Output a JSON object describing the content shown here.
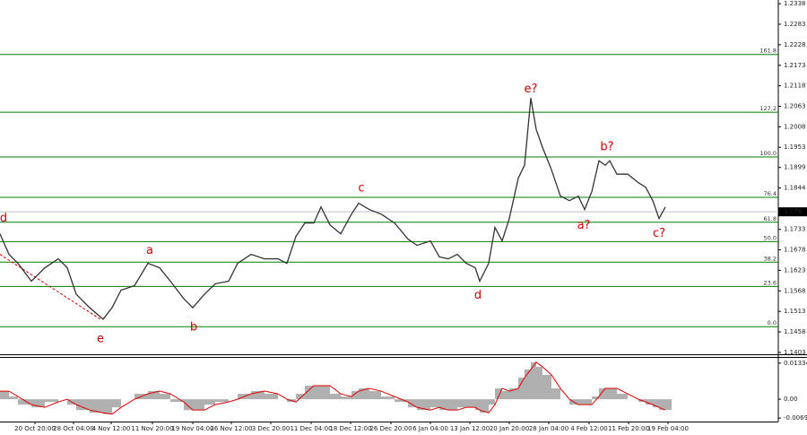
{
  "chart_data": [
    {
      "type": "line",
      "x": [
        0,
        10,
        20,
        35,
        50,
        65,
        75,
        85,
        100,
        115,
        125,
        135,
        150,
        165,
        178,
        190,
        205,
        215,
        228,
        240,
        255,
        265,
        280,
        295,
        310,
        320,
        330,
        340,
        350,
        358,
        368,
        380,
        392,
        400,
        412,
        425,
        440,
        455,
        465,
        480,
        490,
        500,
        510,
        520,
        530,
        535,
        545,
        552,
        560,
        568,
        578,
        585,
        592,
        598,
        605,
        615,
        625,
        635,
        645,
        652,
        660,
        668,
        675,
        680,
        688,
        700,
        712,
        720,
        728,
        735,
        742
      ],
      "series": [
        {
          "color": "#333333",
          "values": [
            1.1721,
            1.1666,
            1.1642,
            1.1594,
            1.163,
            1.1654,
            1.163,
            1.1559,
            1.1523,
            1.1492,
            1.1523,
            1.157,
            1.1582,
            1.1642,
            1.163,
            1.1594,
            1.1547,
            1.1523,
            1.1559,
            1.1587,
            1.1594,
            1.1642,
            1.1666,
            1.1654,
            1.1654,
            1.1642,
            1.1714,
            1.175,
            1.175,
            1.1793,
            1.1745,
            1.1721,
            1.1774,
            1.1803,
            1.1786,
            1.1774,
            1.175,
            1.1707,
            1.169,
            1.1702,
            1.1659,
            1.1654,
            1.1666,
            1.1642,
            1.163,
            1.1594,
            1.1642,
            1.1738,
            1.1702,
            1.1762,
            1.187,
            1.1905,
            1.2085,
            1.2001,
            1.1953,
            1.1893,
            1.1822,
            1.181,
            1.1822,
            1.1786,
            1.1834,
            1.1917,
            1.1905,
            1.1917,
            1.1881,
            1.1881,
            1.1858,
            1.1846,
            1.181,
            1.1762,
            1.1793
          ]
        }
      ],
      "xlim": [
        0,
        868
      ],
      "xticks": [
        {
          "value": 39,
          "label": "20 Oct 20:00"
        },
        {
          "value": 82,
          "label": "28 Oct 04:00"
        },
        {
          "value": 124,
          "label": "4 Nov 12:00"
        },
        {
          "value": 170,
          "label": "11 Nov 20:00"
        },
        {
          "value": 215,
          "label": "19 Nov 04:00"
        },
        {
          "value": 258,
          "label": "26 Nov 12:00"
        },
        {
          "value": 302,
          "label": "3 Dec 20:00"
        },
        {
          "value": 347,
          "label": "11 Dec 04:00"
        },
        {
          "value": 391,
          "label": "18 Dec 12:00"
        },
        {
          "value": 436,
          "label": "26 Dec 20:00"
        },
        {
          "value": 480,
          "label": "6 Jan 04:00"
        },
        {
          "value": 524,
          "label": "13 Jan 12:00"
        },
        {
          "value": 568,
          "label": "20 Jan 20:00"
        },
        {
          "value": 612,
          "label": "28 Jan 04:00"
        },
        {
          "value": 657,
          "label": "4 Feb 12:00"
        },
        {
          "value": 701,
          "label": "11 Feb 20:00"
        },
        {
          "value": 745,
          "label": "19 Feb 04:00"
        }
      ],
      "ylim": [
        1.1398,
        1.2348
      ],
      "yticks": [
        1.2338,
        1.2283,
        1.2228,
        1.2173,
        1.2118,
        1.2063,
        1.2008,
        1.1953,
        1.1899,
        1.1844,
        1.1733,
        1.1678,
        1.1623,
        1.1568,
        1.1513,
        1.1458,
        1.1403
      ],
      "current_price": 1.178,
      "fib_color": "#008000",
      "fib_levels": [
        {
          "value": 1.2202,
          "label": "161.8"
        },
        {
          "value": 1.2047,
          "label": "127.2"
        },
        {
          "value": 1.1927,
          "label": "100.0"
        },
        {
          "value": 1.1819,
          "label": "76.4"
        },
        {
          "value": 1.1752,
          "label": "61.8"
        },
        {
          "value": 1.17,
          "label": "50.0"
        },
        {
          "value": 1.1645,
          "label": "38.2"
        },
        {
          "value": 1.158,
          "label": "23.6"
        },
        {
          "value": 1.1472,
          "label": "0.0"
        }
      ],
      "annotations": [
        {
          "text": "d",
          "x": 4,
          "y": 1.1762
        },
        {
          "text": "e",
          "x": 112,
          "y": 1.1439
        },
        {
          "text": "a",
          "x": 167,
          "y": 1.1676
        },
        {
          "text": "b",
          "x": 216,
          "y": 1.147
        },
        {
          "text": "c",
          "x": 403,
          "y": 1.1843
        },
        {
          "text": "d",
          "x": 533,
          "y": 1.1556
        },
        {
          "text": "e?",
          "x": 592,
          "y": 1.2109
        },
        {
          "text": "a?",
          "x": 651,
          "y": 1.1743
        },
        {
          "text": "b?",
          "x": 677,
          "y": 1.1953
        },
        {
          "text": "c?",
          "x": 735,
          "y": 1.1721
        }
      ],
      "trendline": {
        "x": [
          0,
          112
        ],
        "y": [
          1.1666,
          1.1492
        ],
        "color": "#d40000"
      }
    },
    {
      "type": "bar",
      "series": [
        {
          "color": "#b0b0b0",
          "values": [
            0.003,
            0.001,
            -0.002,
            -0.003,
            -0.001,
            0,
            -0.002,
            -0.004,
            -0.005,
            -0.0055,
            -0.003,
            0,
            0.002,
            0.003,
            0.002,
            -0.001,
            -0.004,
            -0.004,
            -0.002,
            -0.001,
            0,
            0.002,
            0.003,
            0.002,
            0,
            -0.001,
            0.002,
            0.005,
            0.005,
            0.005,
            0.002,
            0.001,
            0.003,
            0.004,
            0.003,
            0.001,
            -0.001,
            -0.003,
            -0.004,
            -0.003,
            -0.004,
            -0.004,
            -0.003,
            -0.003,
            -0.004,
            -0.005,
            -0.002,
            0.004,
            0.003,
            0.004,
            0.008,
            0.011,
            0.0137,
            0.012,
            0.009,
            0.004,
            0,
            -0.002,
            -0.002,
            -0.002,
            0.001,
            0.004,
            0.004,
            0.004,
            0.002,
            0,
            -0.001,
            -0.002,
            -0.003,
            -0.004,
            -0.004
          ]
        },
        {
          "color": "#e00000",
          "values": [
            0.003,
            0.003,
            0.001,
            -0.002,
            -0.003,
            -0.001,
            0,
            -0.002,
            -0.004,
            -0.005,
            -0.0055,
            -0.003,
            0,
            0.002,
            0.003,
            0.002,
            -0.001,
            -0.004,
            -0.004,
            -0.002,
            -0.001,
            0,
            0.002,
            0.003,
            0.002,
            0,
            -0.001,
            0.002,
            0.005,
            0.005,
            0.005,
            0.002,
            0.001,
            0.003,
            0.004,
            0.003,
            0.001,
            -0.001,
            -0.003,
            -0.004,
            -0.003,
            -0.004,
            -0.004,
            -0.003,
            -0.003,
            -0.004,
            -0.005,
            -0.002,
            0.004,
            0.003,
            0.004,
            0.008,
            0.011,
            0.0137,
            0.012,
            0.009,
            0.004,
            0,
            -0.002,
            -0.002,
            -0.002,
            0.001,
            0.004,
            0.004,
            0.004,
            0.002,
            0,
            -0.001,
            -0.002,
            -0.003,
            -0.004
          ]
        }
      ],
      "ylim": [
        -0.00825,
        0.01529
      ],
      "yticks": [
        0.01334,
        {
          "value": 0,
          "label": "0.00"
        },
        -0.00695
      ]
    }
  ]
}
